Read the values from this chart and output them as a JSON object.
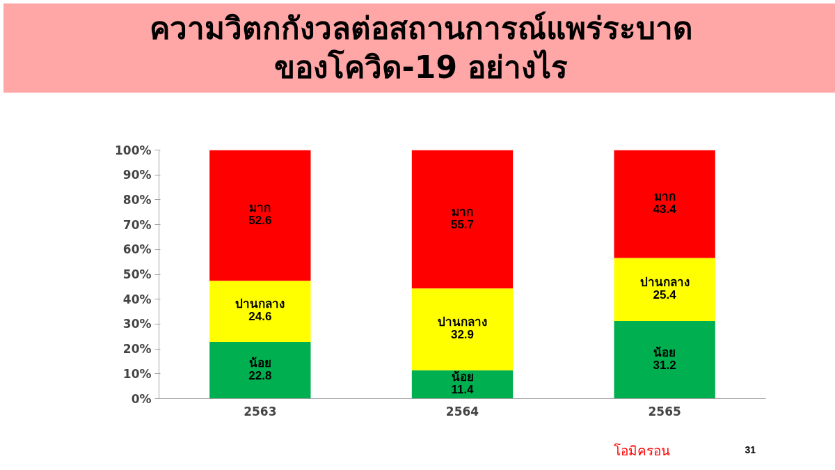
{
  "chart_data": {
    "type": "bar",
    "title": "ความวิตกกังวลต่อสถานการณ์แพร่ระบาด\nของโควิด-19 อย่างไร",
    "categories": [
      "2563",
      "2564",
      "2565"
    ],
    "stacked": true,
    "series": [
      {
        "name": "น้อย",
        "color": "#00b050",
        "values": [
          22.8,
          11.4,
          31.2
        ]
      },
      {
        "name": "ปานกลาง",
        "color": "#ffff00",
        "values": [
          24.6,
          32.9,
          25.4
        ]
      },
      {
        "name": "มาก",
        "color": "#ff0000",
        "values": [
          52.6,
          55.7,
          43.4
        ]
      }
    ],
    "ylim": [
      0,
      100
    ],
    "yticks": [
      {
        "value": 0,
        "label": "0%"
      },
      {
        "value": 10,
        "label": "10%"
      },
      {
        "value": 20,
        "label": "20%"
      },
      {
        "value": 30,
        "label": "30%"
      },
      {
        "value": 40,
        "label": "40%"
      },
      {
        "value": 50,
        "label": "50%"
      },
      {
        "value": 60,
        "label": "60%"
      },
      {
        "value": 70,
        "label": "70%"
      },
      {
        "value": 80,
        "label": "80%"
      },
      {
        "value": 90,
        "label": "90%"
      },
      {
        "value": 100,
        "label": "100%"
      }
    ],
    "data_labels": true,
    "grid": false,
    "legend": false,
    "annotations": [
      "โอมิครอน",
      "31"
    ]
  }
}
